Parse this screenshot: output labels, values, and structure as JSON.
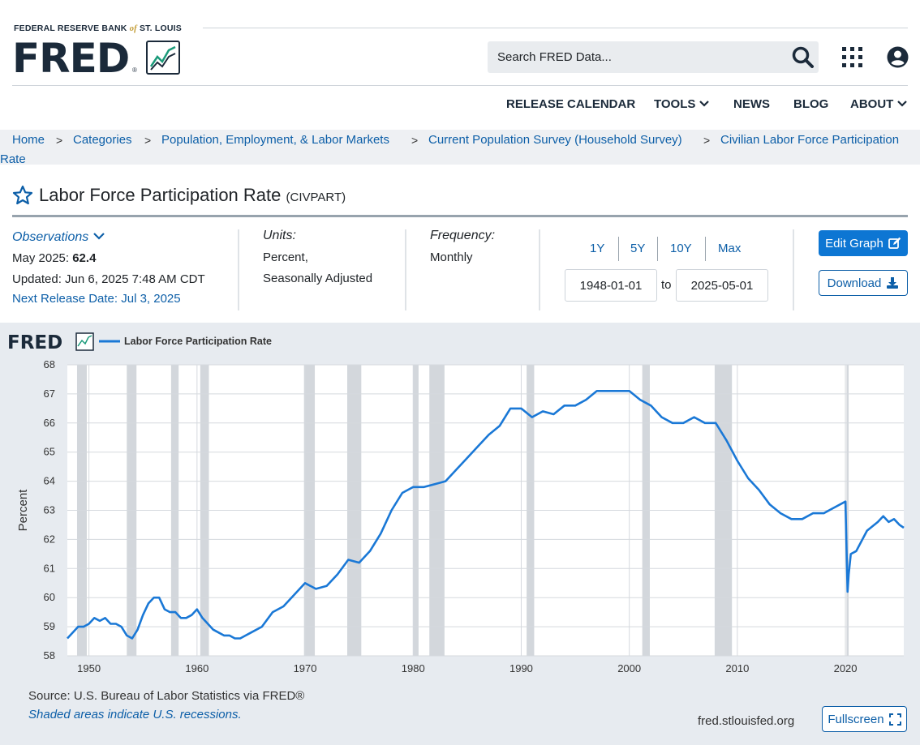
{
  "header": {
    "bank_prefix": "FEDERAL RESERVE BANK",
    "bank_of": "of",
    "bank_suffix": "ST. LOUIS",
    "logo": "FRED",
    "search_placeholder": "Search FRED Data...",
    "icons": {
      "search": "search-icon",
      "apps": "grid-apps-icon",
      "user": "user-account-icon"
    }
  },
  "nav": {
    "items": [
      {
        "label": "RELEASE CALENDAR"
      },
      {
        "label": "TOOLS",
        "dropdown": true
      },
      {
        "label": "NEWS"
      },
      {
        "label": "BLOG"
      },
      {
        "label": "ABOUT",
        "dropdown": true
      }
    ]
  },
  "breadcrumb": {
    "sep": ">",
    "items": [
      "Home",
      "Categories",
      "Population, Employment, & Labor Markets",
      "Current Population Survey (Household Survey)",
      "Civilian Labor Force Participation",
      "Rate"
    ]
  },
  "series": {
    "title": "Labor Force Participation Rate",
    "id": "(CIVPART)",
    "observations_label": "Observations",
    "latest_period": "May 2025:",
    "latest_value": "62.4",
    "updated": "Updated: Jun 6, 2025 7:48 AM CDT",
    "next_release": "Next Release Date: Jul 3, 2025",
    "units_label": "Units:",
    "units_line1": "Percent,",
    "units_line2": "Seasonally Adjusted",
    "frequency_label": "Frequency:",
    "frequency_value": "Monthly"
  },
  "controls": {
    "ranges": [
      "1Y",
      "5Y",
      "10Y",
      "Max"
    ],
    "start_date": "1948-01-01",
    "to_label": "to",
    "end_date": "2025-05-01",
    "edit_label": "Edit Graph",
    "download_label": "Download",
    "fullscreen_label": "Fullscreen"
  },
  "footer": {
    "source": "Source: U.S. Bureau of Labor Statistics via FRED®",
    "shaded_note": "Shaded areas indicate U.S. recessions.",
    "site": "fred.stlouisfed.org"
  },
  "colors": {
    "link": "#0d5fa8",
    "accent": "#0d76d3",
    "series_line": "#1a78d6",
    "recession": "#d3d7dc"
  },
  "chart_data": {
    "type": "line",
    "logo": "FRED",
    "legend": [
      "Labor Force Participation Rate"
    ],
    "ylabel": "Percent",
    "xlabel": "",
    "xlim": [
      1948.0,
      2025.4
    ],
    "ylim": [
      58,
      68
    ],
    "yticks": [
      58,
      59,
      60,
      61,
      62,
      63,
      64,
      65,
      66,
      67,
      68
    ],
    "xticks": [
      1950,
      1960,
      1970,
      1980,
      1990,
      2000,
      2010,
      2020
    ],
    "grid": true,
    "recessions": [
      [
        1948.9,
        1949.8
      ],
      [
        1953.5,
        1954.4
      ],
      [
        1957.6,
        1958.3
      ],
      [
        1960.3,
        1961.1
      ],
      [
        1969.9,
        1970.9
      ],
      [
        1973.9,
        1975.2
      ],
      [
        1980.0,
        1980.5
      ],
      [
        1981.5,
        1982.9
      ],
      [
        1990.5,
        1991.2
      ],
      [
        2001.2,
        2001.9
      ],
      [
        2007.9,
        2009.5
      ],
      [
        2020.1,
        2020.3
      ]
    ],
    "series": [
      {
        "name": "Labor Force Participation Rate",
        "x": [
          1948.0,
          1948.5,
          1949.0,
          1949.5,
          1950.0,
          1950.5,
          1951.0,
          1951.5,
          1952.0,
          1952.5,
          1953.0,
          1953.5,
          1954.0,
          1954.5,
          1955.0,
          1955.5,
          1956.0,
          1956.5,
          1957.0,
          1957.5,
          1958.0,
          1958.5,
          1959.0,
          1959.5,
          1960.0,
          1960.5,
          1961.0,
          1961.5,
          1962.0,
          1962.5,
          1963.0,
          1963.5,
          1964.0,
          1964.5,
          1965.0,
          1966.0,
          1967.0,
          1968.0,
          1969.0,
          1970.0,
          1971.0,
          1972.0,
          1973.0,
          1974.0,
          1975.0,
          1976.0,
          1977.0,
          1978.0,
          1979.0,
          1980.0,
          1981.0,
          1982.0,
          1983.0,
          1984.0,
          1985.0,
          1986.0,
          1987.0,
          1988.0,
          1989.0,
          1990.0,
          1991.0,
          1992.0,
          1993.0,
          1994.0,
          1995.0,
          1996.0,
          1997.0,
          1998.0,
          1999.0,
          2000.0,
          2001.0,
          2002.0,
          2003.0,
          2004.0,
          2005.0,
          2006.0,
          2007.0,
          2008.0,
          2009.0,
          2010.0,
          2011.0,
          2012.0,
          2013.0,
          2014.0,
          2015.0,
          2016.0,
          2017.0,
          2018.0,
          2019.0,
          2020.0,
          2020.2,
          2020.3,
          2020.5,
          2021.0,
          2022.0,
          2023.0,
          2023.5,
          2024.0,
          2024.5,
          2025.0,
          2025.4
        ],
        "values": [
          58.6,
          58.8,
          59.0,
          59.0,
          59.1,
          59.3,
          59.2,
          59.3,
          59.1,
          59.1,
          59.0,
          58.7,
          58.6,
          58.9,
          59.4,
          59.8,
          60.0,
          60.0,
          59.6,
          59.5,
          59.5,
          59.3,
          59.3,
          59.4,
          59.6,
          59.3,
          59.1,
          58.9,
          58.8,
          58.7,
          58.7,
          58.6,
          58.6,
          58.7,
          58.8,
          59.0,
          59.5,
          59.7,
          60.1,
          60.5,
          60.3,
          60.4,
          60.8,
          61.3,
          61.2,
          61.6,
          62.2,
          63.0,
          63.6,
          63.8,
          63.8,
          63.9,
          64.0,
          64.4,
          64.8,
          65.2,
          65.6,
          65.9,
          66.5,
          66.5,
          66.2,
          66.4,
          66.3,
          66.6,
          66.6,
          66.8,
          67.1,
          67.1,
          67.1,
          67.1,
          66.8,
          66.6,
          66.2,
          66.0,
          66.0,
          66.2,
          66.0,
          66.0,
          65.4,
          64.7,
          64.1,
          63.7,
          63.2,
          62.9,
          62.7,
          62.7,
          62.9,
          62.9,
          63.1,
          63.3,
          60.2,
          60.8,
          61.5,
          61.6,
          62.3,
          62.6,
          62.8,
          62.6,
          62.7,
          62.5,
          62.4
        ]
      }
    ]
  }
}
